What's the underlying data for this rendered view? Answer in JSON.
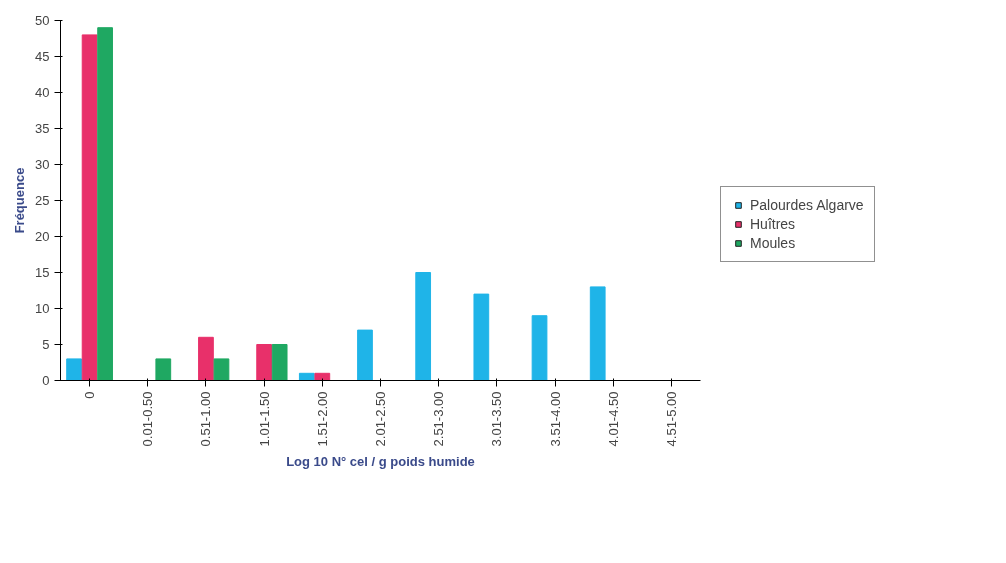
{
  "chart_data": {
    "type": "bar",
    "categories": [
      "0",
      "0.01-0.50",
      "0.51-1.00",
      "1.01-1.50",
      "1.51-2.00",
      "2.01-2.50",
      "2.51-3.00",
      "3.01-3.50",
      "3.51-4.00",
      "4.01-4.50",
      "4.51-5.00"
    ],
    "series": [
      {
        "name": "Palourdes Algarve",
        "color": "#1fb4e8",
        "values": [
          3,
          0,
          0,
          0,
          1,
          7,
          15,
          12,
          9,
          13,
          0
        ]
      },
      {
        "name": "Huîtres",
        "color": "#e8306a",
        "values": [
          48,
          0,
          6,
          5,
          1,
          0,
          0,
          0,
          0,
          0,
          0
        ]
      },
      {
        "name": "Moules",
        "color": "#1fa862",
        "values": [
          49,
          3,
          3,
          5,
          0,
          0,
          0,
          0,
          0,
          0,
          0
        ]
      }
    ],
    "xlabel": "Log 10 N° cel / g poids humide",
    "ylabel": "Fréquence",
    "ylim": [
      0,
      50
    ],
    "yticks": [
      0,
      5,
      10,
      15,
      20,
      25,
      30,
      35,
      40,
      45,
      50
    ],
    "grid": false,
    "legend": "right"
  }
}
